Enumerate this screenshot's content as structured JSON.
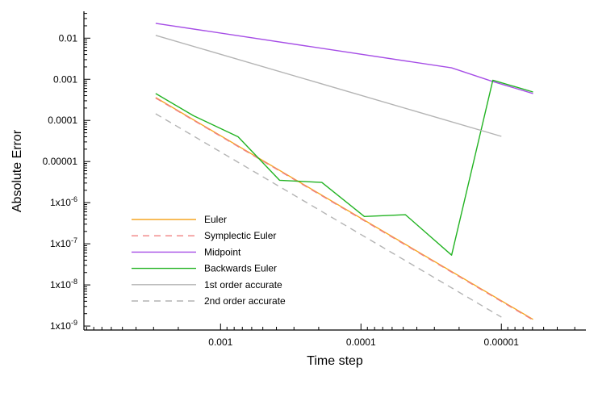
{
  "chart_data": {
    "type": "line",
    "title": "",
    "xlabel": "Time step",
    "ylabel": "Absolute Error",
    "x_scale": "log",
    "x_reversed": true,
    "y_scale": "log",
    "xlim": [
      0.0094,
      2.5e-06
    ],
    "ylim": [
      8e-10,
      0.045
    ],
    "grid": false,
    "legend_position": "lower-left",
    "x_ticks": [
      {
        "value": 0.001,
        "label": "0.001"
      },
      {
        "value": 0.0001,
        "label": "0.0001"
      },
      {
        "value": 1e-05,
        "label": "0.00001"
      }
    ],
    "y_ticks": [
      {
        "value": 0.01,
        "label": "0.01"
      },
      {
        "value": 0.001,
        "label": "0.001"
      },
      {
        "value": 0.0001,
        "label": "0.0001"
      },
      {
        "value": 1e-05,
        "label": "0.00001"
      },
      {
        "value": 1e-06,
        "label": "1x10",
        "exp": "-6"
      },
      {
        "value": 1e-07,
        "label": "1x10",
        "exp": "-7"
      },
      {
        "value": 1e-08,
        "label": "1x10",
        "exp": "-8"
      },
      {
        "value": 1e-09,
        "label": "1x10",
        "exp": "-9"
      }
    ],
    "series": [
      {
        "name": "Euler",
        "color": "#f5a623",
        "dash": "",
        "x": [
          0.0029,
          5.95e-06
        ],
        "y": [
          0.00036,
          1.45e-09
        ]
      },
      {
        "name": "Symplectic Euler",
        "color": "#f08080",
        "dash": "8,6",
        "x": [
          0.0029,
          5.95e-06
        ],
        "y": [
          0.00035,
          1.4e-09
        ]
      },
      {
        "name": "Midpoint",
        "color": "#a64ee6",
        "dash": "",
        "x": [
          0.0029,
          2.26e-05,
          1.15e-05,
          5.95e-06
        ],
        "y": [
          0.023,
          0.0019,
          0.00088,
          0.00045
        ]
      },
      {
        "name": "Backwards Euler",
        "color": "#22b322",
        "dash": "",
        "x": [
          0.0029,
          0.00156,
          0.00075,
          0.00038,
          0.00019,
          9.46e-05,
          4.82e-05,
          2.26e-05,
          1.15e-05,
          5.95e-06
        ],
        "y": [
          0.00045,
          0.00013,
          4e-05,
          3.5e-06,
          3.1e-06,
          4.6e-07,
          5.1e-07,
          5.3e-08,
          0.00095,
          0.00049
        ]
      },
      {
        "name": "1st order accurate",
        "color": "#b4b4b4",
        "dash": "",
        "x": [
          0.0029,
          1e-05
        ],
        "y": [
          0.0117,
          4.1e-05
        ]
      },
      {
        "name": "2nd order accurate",
        "color": "#b4b4b4",
        "dash": "8,6",
        "x": [
          0.0029,
          1e-05
        ],
        "y": [
          0.000145,
          1.65e-09
        ]
      }
    ]
  }
}
